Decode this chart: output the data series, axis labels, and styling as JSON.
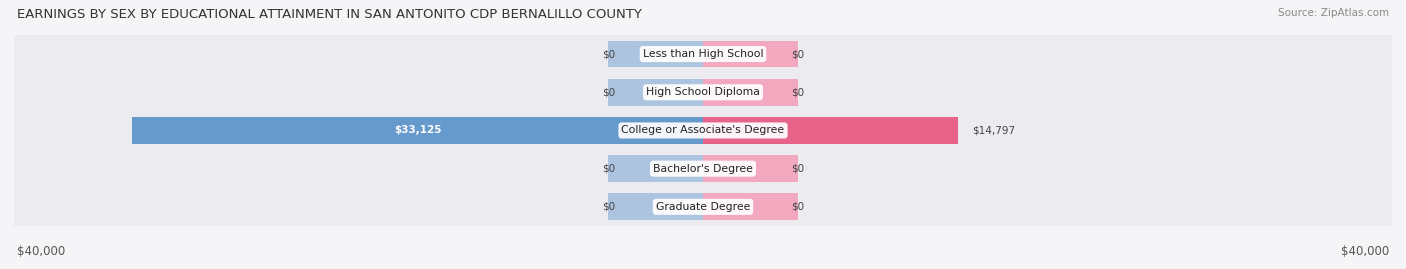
{
  "title": "EARNINGS BY SEX BY EDUCATIONAL ATTAINMENT IN SAN ANTONITO CDP BERNALILLO COUNTY",
  "source": "Source: ZipAtlas.com",
  "categories": [
    "Less than High School",
    "High School Diploma",
    "College or Associate's Degree",
    "Bachelor's Degree",
    "Graduate Degree"
  ],
  "male_values": [
    0,
    0,
    33125,
    0,
    0
  ],
  "female_values": [
    0,
    0,
    14797,
    0,
    0
  ],
  "male_color_full": "#6699cc",
  "female_color_full": "#e8638a",
  "male_color_light": "#adc4e0",
  "female_color_light": "#f2a8bf",
  "row_bg_color": "#ebebf0",
  "row_alt_color": "#e2e2ea",
  "max_value": 40000,
  "zero_bar_width": 5500,
  "xlabel_left": "$40,000",
  "xlabel_right": "$40,000",
  "title_fontsize": 9.5,
  "source_fontsize": 7.5,
  "label_fontsize": 7.5,
  "axis_fontsize": 8.5,
  "bg_color": "#f5f5f7"
}
